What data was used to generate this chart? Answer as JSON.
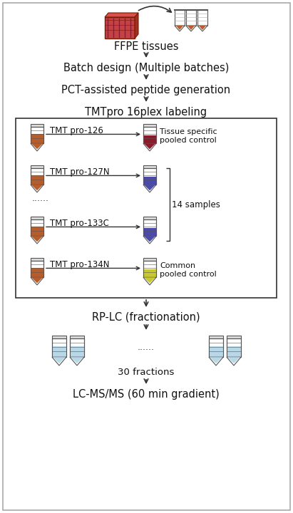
{
  "bg_color": "#ffffff",
  "border_color": "#333333",
  "text_color": "#111111",
  "arrow_color": "#333333",
  "tube_brown": "#b85c2a",
  "tube_dark_red": "#8b1a2a",
  "tube_blue": "#4a4aaa",
  "tube_yellow": "#c8c830",
  "tube_light_blue": "#b8d8e8",
  "tube_outline": "#555555",
  "tmt_rows": [
    {
      "label": "TMT pro-126",
      "lc": "#b85c2a",
      "rc": "#8b1a2a",
      "rtxt": "Tissue specific\npooled control",
      "bracket": false,
      "dots": false
    },
    {
      "label": "TMT pro-127N",
      "lc": "#b85c2a",
      "rc": "#4a4aaa",
      "rtxt": "",
      "bracket": true,
      "dots": true
    },
    {
      "label": "TMT pro-133C",
      "lc": "#b85c2a",
      "rc": "#4a4aaa",
      "rtxt": "",
      "bracket": true,
      "dots": false
    },
    {
      "label": "TMT pro-134N",
      "lc": "#b85c2a",
      "rc": "#c8c830",
      "rtxt": "Common\npooled control",
      "bracket": false,
      "dots": false
    }
  ],
  "bracket_label": "14 samples",
  "frac_color": "#b8d8e8",
  "outer_border": true
}
